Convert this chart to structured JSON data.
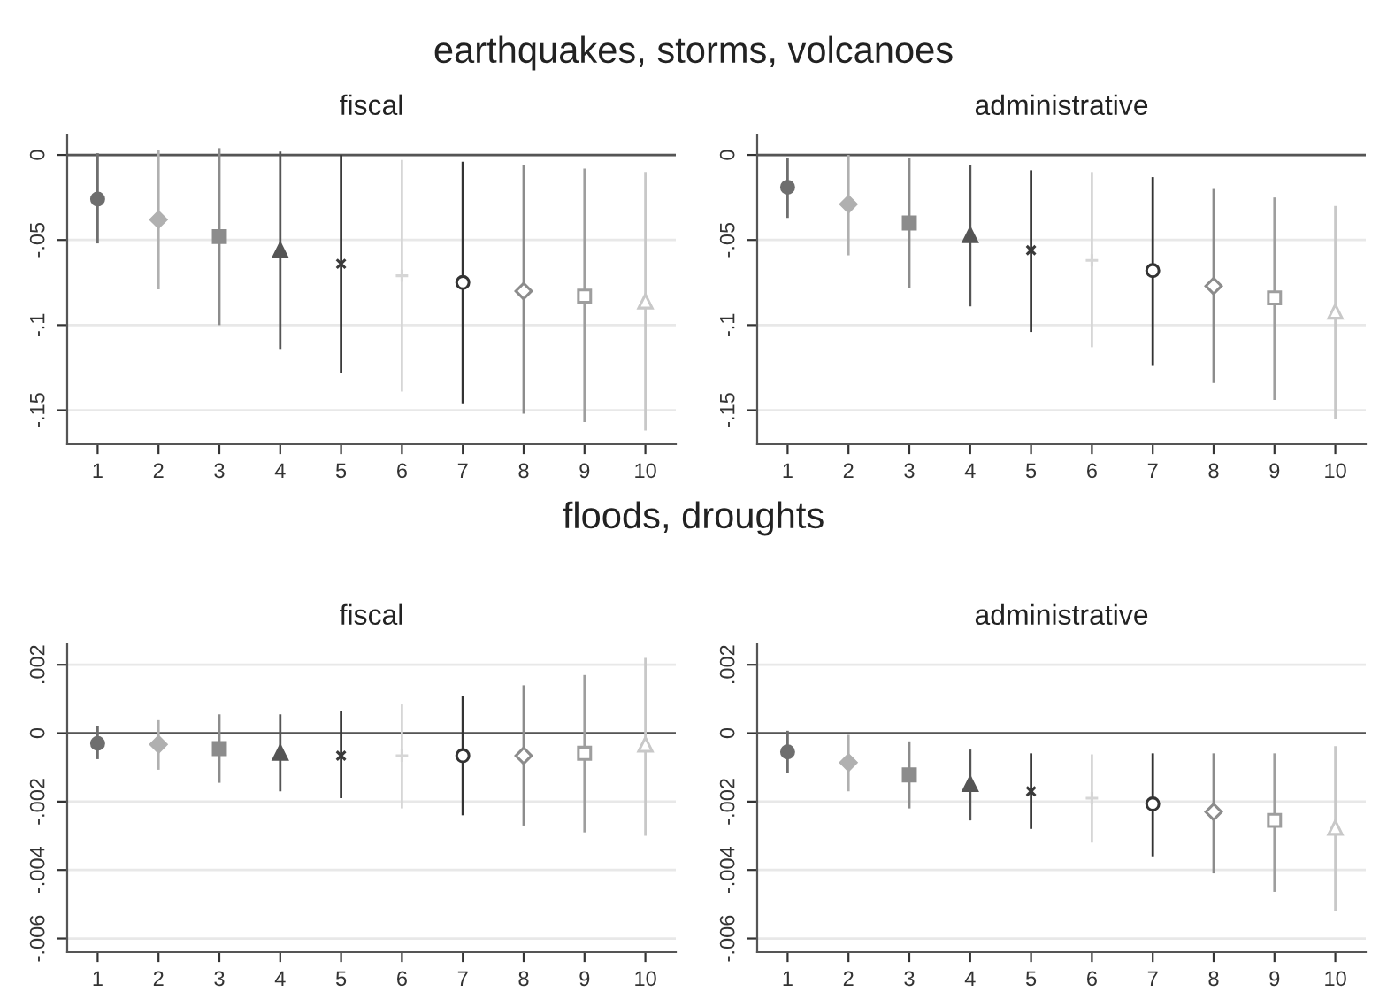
{
  "chart_data": [
    {
      "type": "scatter",
      "subtitle": "earthquakes, storms, volcanoes",
      "title": "fiscal",
      "xlim": [
        0.5,
        10.5
      ],
      "xticks": [
        1,
        2,
        3,
        4,
        5,
        6,
        7,
        8,
        9,
        10
      ],
      "ylim": [
        -0.17,
        0.012
      ],
      "yticks": [
        {
          "value": 0,
          "label": "0"
        },
        {
          "value": -0.05,
          "label": "-.05"
        },
        {
          "value": -0.1,
          "label": "-.1"
        },
        {
          "value": -0.15,
          "label": "-.15"
        }
      ],
      "grid": "y",
      "ref_lines": [
        {
          "axis": "y",
          "value": 0,
          "color": "#555555"
        }
      ],
      "series": [
        {
          "x": [
            1
          ],
          "values": [
            -0.026
          ],
          "errors": [
            [
              -0.052,
              0.001
            ]
          ],
          "color": "#6e6e6e",
          "marker": "circle"
        },
        {
          "x": [
            2
          ],
          "values": [
            -0.038
          ],
          "errors": [
            [
              -0.079,
              0.003
            ]
          ],
          "color": "#b0b0b0",
          "marker": "diamond"
        },
        {
          "x": [
            3
          ],
          "values": [
            -0.048
          ],
          "errors": [
            [
              -0.1,
              0.004
            ]
          ],
          "color": "#8c8c8c",
          "marker": "square"
        },
        {
          "x": [
            4
          ],
          "values": [
            -0.056
          ],
          "errors": [
            [
              -0.114,
              0.002
            ]
          ],
          "color": "#555555",
          "marker": "triangle"
        },
        {
          "x": [
            5
          ],
          "values": [
            -0.064
          ],
          "errors": [
            [
              -0.128,
              0.0
            ]
          ],
          "color": "#3a3a3a",
          "marker": "cross"
        },
        {
          "x": [
            6
          ],
          "values": [
            -0.071
          ],
          "errors": [
            [
              -0.139,
              -0.003
            ]
          ],
          "color": "#d6d6d6",
          "marker": "plus"
        },
        {
          "x": [
            7
          ],
          "values": [
            -0.075
          ],
          "errors": [
            [
              -0.146,
              -0.004
            ]
          ],
          "color": "#333333",
          "marker": "circle"
        },
        {
          "x": [
            8
          ],
          "values": [
            -0.08
          ],
          "errors": [
            [
              -0.152,
              -0.006
            ]
          ],
          "color": "#8c8c8c",
          "marker": "diamond"
        },
        {
          "x": [
            9
          ],
          "values": [
            -0.083
          ],
          "errors": [
            [
              -0.157,
              -0.008
            ]
          ],
          "color": "#9e9e9e",
          "marker": "square"
        },
        {
          "x": [
            10
          ],
          "values": [
            -0.086
          ],
          "errors": [
            [
              -0.162,
              -0.01
            ]
          ],
          "color": "#c8c8c8",
          "marker": "triangle"
        }
      ]
    },
    {
      "type": "scatter",
      "title": "administrative",
      "xlim": [
        0.5,
        10.5
      ],
      "xticks": [
        1,
        2,
        3,
        4,
        5,
        6,
        7,
        8,
        9,
        10
      ],
      "ylim": [
        -0.17,
        0.012
      ],
      "yticks": [
        {
          "value": 0,
          "label": "0"
        },
        {
          "value": -0.05,
          "label": "-.05"
        },
        {
          "value": -0.1,
          "label": "-.1"
        },
        {
          "value": -0.15,
          "label": "-.15"
        }
      ],
      "grid": "y",
      "ref_lines": [
        {
          "axis": "y",
          "value": 0,
          "color": "#555555"
        }
      ],
      "series": [
        {
          "x": [
            1
          ],
          "values": [
            -0.019
          ],
          "errors": [
            [
              -0.037,
              -0.002
            ]
          ],
          "color": "#6e6e6e",
          "marker": "circle"
        },
        {
          "x": [
            2
          ],
          "values": [
            -0.029
          ],
          "errors": [
            [
              -0.059,
              0.0
            ]
          ],
          "color": "#b0b0b0",
          "marker": "diamond"
        },
        {
          "x": [
            3
          ],
          "values": [
            -0.04
          ],
          "errors": [
            [
              -0.078,
              -0.002
            ]
          ],
          "color": "#8c8c8c",
          "marker": "square"
        },
        {
          "x": [
            4
          ],
          "values": [
            -0.047
          ],
          "errors": [
            [
              -0.089,
              -0.006
            ]
          ],
          "color": "#555555",
          "marker": "triangle"
        },
        {
          "x": [
            5
          ],
          "values": [
            -0.056
          ],
          "errors": [
            [
              -0.104,
              -0.009
            ]
          ],
          "color": "#3a3a3a",
          "marker": "cross"
        },
        {
          "x": [
            6
          ],
          "values": [
            -0.062
          ],
          "errors": [
            [
              -0.113,
              -0.01
            ]
          ],
          "color": "#d6d6d6",
          "marker": "plus"
        },
        {
          "x": [
            7
          ],
          "values": [
            -0.068
          ],
          "errors": [
            [
              -0.124,
              -0.013
            ]
          ],
          "color": "#333333",
          "marker": "circle"
        },
        {
          "x": [
            8
          ],
          "values": [
            -0.077
          ],
          "errors": [
            [
              -0.134,
              -0.02
            ]
          ],
          "color": "#8c8c8c",
          "marker": "diamond"
        },
        {
          "x": [
            9
          ],
          "values": [
            -0.084
          ],
          "errors": [
            [
              -0.144,
              -0.025
            ]
          ],
          "color": "#9e9e9e",
          "marker": "square"
        },
        {
          "x": [
            10
          ],
          "values": [
            -0.092
          ],
          "errors": [
            [
              -0.155,
              -0.03
            ]
          ],
          "color": "#c8c8c8",
          "marker": "triangle"
        }
      ]
    },
    {
      "type": "scatter",
      "subtitle": "floods, droughts",
      "title": "fiscal",
      "xlim": [
        0.5,
        10.5
      ],
      "xticks": [
        1,
        2,
        3,
        4,
        5,
        6,
        7,
        8,
        9,
        10
      ],
      "ylim": [
        -0.0064,
        0.0026
      ],
      "yticks": [
        {
          "value": 0.002,
          "label": ".002"
        },
        {
          "value": 0,
          "label": "0"
        },
        {
          "value": -0.002,
          "label": "-.002"
        },
        {
          "value": -0.004,
          "label": "-.004"
        },
        {
          "value": -0.006,
          "label": "-.006"
        }
      ],
      "grid": "y",
      "ref_lines": [
        {
          "axis": "y",
          "value": 0,
          "color": "#555555"
        }
      ],
      "series": [
        {
          "x": [
            1
          ],
          "values": [
            -0.0003
          ],
          "errors": [
            [
              -0.00076,
              0.0002
            ]
          ],
          "color": "#6e6e6e",
          "marker": "circle"
        },
        {
          "x": [
            2
          ],
          "values": [
            -0.00033
          ],
          "errors": [
            [
              -0.00107,
              0.00038
            ]
          ],
          "color": "#b0b0b0",
          "marker": "diamond"
        },
        {
          "x": [
            3
          ],
          "values": [
            -0.00045
          ],
          "errors": [
            [
              -0.00145,
              0.00055
            ]
          ],
          "color": "#8c8c8c",
          "marker": "square"
        },
        {
          "x": [
            4
          ],
          "values": [
            -0.00057
          ],
          "errors": [
            [
              -0.0017,
              0.00055
            ]
          ],
          "color": "#555555",
          "marker": "triangle"
        },
        {
          "x": [
            5
          ],
          "values": [
            -0.00066
          ],
          "errors": [
            [
              -0.0019,
              0.00064
            ]
          ],
          "color": "#3a3a3a",
          "marker": "cross"
        },
        {
          "x": [
            6
          ],
          "values": [
            -0.00066
          ],
          "errors": [
            [
              -0.0022,
              0.00084
            ]
          ],
          "color": "#d6d6d6",
          "marker": "plus"
        },
        {
          "x": [
            7
          ],
          "values": [
            -0.00066
          ],
          "errors": [
            [
              -0.0024,
              0.0011
            ]
          ],
          "color": "#333333",
          "marker": "circle"
        },
        {
          "x": [
            8
          ],
          "values": [
            -0.00066
          ],
          "errors": [
            [
              -0.0027,
              0.0014
            ]
          ],
          "color": "#8c8c8c",
          "marker": "diamond"
        },
        {
          "x": [
            9
          ],
          "values": [
            -0.00059
          ],
          "errors": [
            [
              -0.0029,
              0.0017
            ]
          ],
          "color": "#9e9e9e",
          "marker": "square"
        },
        {
          "x": [
            10
          ],
          "values": [
            -0.00033
          ],
          "errors": [
            [
              -0.003,
              0.0022
            ]
          ],
          "color": "#c8c8c8",
          "marker": "triangle"
        }
      ]
    },
    {
      "type": "scatter",
      "title": "administrative",
      "xlim": [
        0.5,
        10.5
      ],
      "xticks": [
        1,
        2,
        3,
        4,
        5,
        6,
        7,
        8,
        9,
        10
      ],
      "ylim": [
        -0.0064,
        0.0026
      ],
      "yticks": [
        {
          "value": 0.002,
          "label": ".002"
        },
        {
          "value": 0,
          "label": "0"
        },
        {
          "value": -0.002,
          "label": "-.002"
        },
        {
          "value": -0.004,
          "label": "-.004"
        },
        {
          "value": -0.006,
          "label": "-.006"
        }
      ],
      "grid": "y",
      "ref_lines": [
        {
          "axis": "y",
          "value": 0,
          "color": "#555555"
        }
      ],
      "series": [
        {
          "x": [
            1
          ],
          "values": [
            -0.00055
          ],
          "errors": [
            [
              -0.00115,
              7e-05
            ]
          ],
          "color": "#6e6e6e",
          "marker": "circle"
        },
        {
          "x": [
            2
          ],
          "values": [
            -0.00086
          ],
          "errors": [
            [
              -0.0017,
              -5e-05
            ]
          ],
          "color": "#b0b0b0",
          "marker": "diamond"
        },
        {
          "x": [
            3
          ],
          "values": [
            -0.00122
          ],
          "errors": [
            [
              -0.0022,
              -0.00024
            ]
          ],
          "color": "#8c8c8c",
          "marker": "square"
        },
        {
          "x": [
            4
          ],
          "values": [
            -0.00148
          ],
          "errors": [
            [
              -0.00255,
              -0.00048
            ]
          ],
          "color": "#555555",
          "marker": "triangle"
        },
        {
          "x": [
            5
          ],
          "values": [
            -0.0017
          ],
          "errors": [
            [
              -0.0028,
              -0.00059
            ]
          ],
          "color": "#3a3a3a",
          "marker": "cross"
        },
        {
          "x": [
            6
          ],
          "values": [
            -0.0019
          ],
          "errors": [
            [
              -0.0032,
              -0.00062
            ]
          ],
          "color": "#d6d6d6",
          "marker": "plus"
        },
        {
          "x": [
            7
          ],
          "values": [
            -0.00207
          ],
          "errors": [
            [
              -0.0036,
              -0.00059
            ]
          ],
          "color": "#333333",
          "marker": "circle"
        },
        {
          "x": [
            8
          ],
          "values": [
            -0.0023
          ],
          "errors": [
            [
              -0.0041,
              -0.00059
            ]
          ],
          "color": "#8c8c8c",
          "marker": "diamond"
        },
        {
          "x": [
            9
          ],
          "values": [
            -0.00255
          ],
          "errors": [
            [
              -0.00464,
              -0.00059
            ]
          ],
          "color": "#9e9e9e",
          "marker": "square"
        },
        {
          "x": [
            10
          ],
          "values": [
            -0.00276
          ],
          "errors": [
            [
              -0.0052,
              -0.00038
            ]
          ],
          "color": "#c8c8c8",
          "marker": "triangle"
        }
      ]
    }
  ]
}
